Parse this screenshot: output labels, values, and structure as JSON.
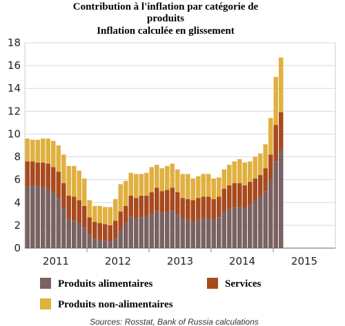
{
  "chart_data": {
    "type": "stacked_bar",
    "title": [
      "Contribution à l'inflation par catégorie de",
      "produits",
      "Inflation calculée en glissement"
    ],
    "categories": [
      null,
      null,
      null,
      null,
      null,
      null,
      null,
      null,
      null,
      null,
      null,
      null,
      null,
      null,
      null,
      null,
      null,
      null,
      null,
      null,
      null,
      null,
      null,
      null,
      null,
      null,
      null,
      null,
      null,
      null,
      null,
      null,
      null,
      null,
      null,
      null,
      null,
      null,
      null,
      null,
      null,
      null,
      null,
      null,
      null,
      null,
      null,
      null,
      null,
      null
    ],
    "xticks": [
      "2011",
      "2012",
      "2013",
      "2014",
      "2015"
    ],
    "ylim": [
      0,
      18
    ],
    "yticks": [
      0,
      2,
      4,
      6,
      8,
      10,
      12,
      14,
      16,
      18
    ],
    "grid": true,
    "series": [
      {
        "name": "Produits alimentaires",
        "color": "#7a6262",
        "values": [
          5.4,
          5.5,
          5.4,
          5.4,
          5.2,
          4.9,
          4.4,
          3.5,
          2.6,
          2.4,
          2.2,
          1.8,
          1.2,
          0.8,
          0.7,
          0.7,
          0.6,
          0.8,
          1.6,
          2.2,
          2.8,
          2.6,
          2.7,
          2.8,
          3.0,
          3.3,
          3.1,
          3.2,
          3.3,
          3.0,
          2.6,
          2.5,
          2.3,
          2.5,
          2.6,
          2.6,
          2.5,
          2.7,
          3.2,
          3.4,
          3.6,
          3.6,
          3.5,
          3.8,
          4.2,
          4.5,
          5.0,
          6.0,
          7.6,
          8.6
        ]
      },
      {
        "name": "Services",
        "color": "#a84a1f",
        "values": [
          2.2,
          2.1,
          2.1,
          2.1,
          2.2,
          2.2,
          2.3,
          2.2,
          2.0,
          2.1,
          2.0,
          1.9,
          1.5,
          1.5,
          1.5,
          1.4,
          1.4,
          1.6,
          1.6,
          1.5,
          1.8,
          1.8,
          1.9,
          1.8,
          1.9,
          2.0,
          1.9,
          1.9,
          2.0,
          1.9,
          1.8,
          1.8,
          1.9,
          1.9,
          1.9,
          1.9,
          1.8,
          1.8,
          2.0,
          2.1,
          2.1,
          2.1,
          2.0,
          2.0,
          1.9,
          1.9,
          2.0,
          2.2,
          3.2,
          3.3
        ]
      },
      {
        "name": "Produits non-alimentaires",
        "color": "#e0b040",
        "values": [
          2.0,
          1.9,
          2.0,
          2.1,
          2.2,
          2.3,
          2.3,
          2.5,
          2.6,
          2.7,
          2.6,
          2.4,
          1.5,
          1.4,
          1.5,
          1.5,
          1.6,
          1.9,
          2.4,
          2.2,
          2.0,
          2.1,
          1.9,
          2.0,
          2.2,
          2.0,
          2.0,
          2.1,
          2.1,
          2.0,
          2.1,
          2.2,
          1.9,
          1.9,
          2.0,
          2.0,
          1.8,
          1.7,
          1.7,
          1.8,
          1.9,
          2.1,
          2.0,
          1.8,
          1.9,
          1.9,
          2.1,
          3.2,
          4.2,
          4.8
        ]
      }
    ],
    "source": "Sources: Rosstat, Bank of Russia calculations"
  }
}
